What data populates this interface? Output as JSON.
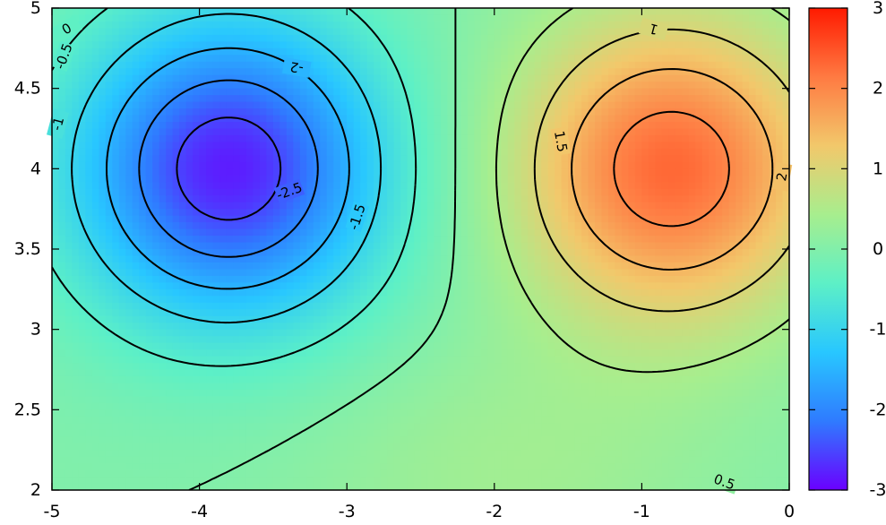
{
  "chart_data": {
    "type": "heatmap",
    "subtype": "filled-contour",
    "title": "",
    "xlabel": "",
    "ylabel": "",
    "xlim": [
      -5,
      0
    ],
    "ylim": [
      2,
      5
    ],
    "x_ticks": [
      "-5",
      "-4",
      "-3",
      "-2",
      "-1",
      "0"
    ],
    "y_ticks": [
      "2",
      "2.5",
      "3",
      "3.5",
      "4",
      "4.5",
      "5"
    ],
    "colorbar": {
      "range": [
        -3,
        3
      ],
      "ticks": [
        "-3",
        "-2",
        "-1",
        "0",
        "1",
        "2",
        "3"
      ],
      "colormap": [
        "#6a00ff",
        "#2f7bff",
        "#28c7ff",
        "#5df0c6",
        "#a7ee8e",
        "#f2c86b",
        "#ff7a42",
        "#ff1a00"
      ]
    },
    "extrema": [
      {
        "x": -3.8,
        "y": 4.0,
        "value": -2.8,
        "kind": "min"
      },
      {
        "x": -0.8,
        "y": 4.0,
        "value": 2.3,
        "kind": "max"
      }
    ],
    "contour_levels": [
      -2.5,
      -2,
      -1.5,
      -1,
      -0.5,
      0,
      0.5,
      1,
      1.5,
      2
    ],
    "contour_labels": [
      {
        "text": "0",
        "x": -4.9,
        "y": 4.87,
        "angle": -30
      },
      {
        "text": "-0.5",
        "x": -4.92,
        "y": 4.7,
        "angle": -70
      },
      {
        "text": "-1",
        "x": -4.96,
        "y": 4.28,
        "angle": -75
      },
      {
        "text": "-2",
        "x": -3.34,
        "y": 4.63,
        "angle": 190
      },
      {
        "text": "-2.5",
        "x": -3.39,
        "y": 3.86,
        "angle": -20
      },
      {
        "text": "-1.5",
        "x": -2.93,
        "y": 3.7,
        "angle": -72
      },
      {
        "text": "1",
        "x": -0.92,
        "y": 4.87,
        "angle": 195
      },
      {
        "text": "1.5",
        "x": -1.55,
        "y": 4.17,
        "angle": 80
      },
      {
        "text": "2",
        "x": -0.05,
        "y": 3.95,
        "angle": -80
      },
      {
        "text": "0.5",
        "x": -0.44,
        "y": 2.05,
        "angle": 20
      }
    ]
  }
}
